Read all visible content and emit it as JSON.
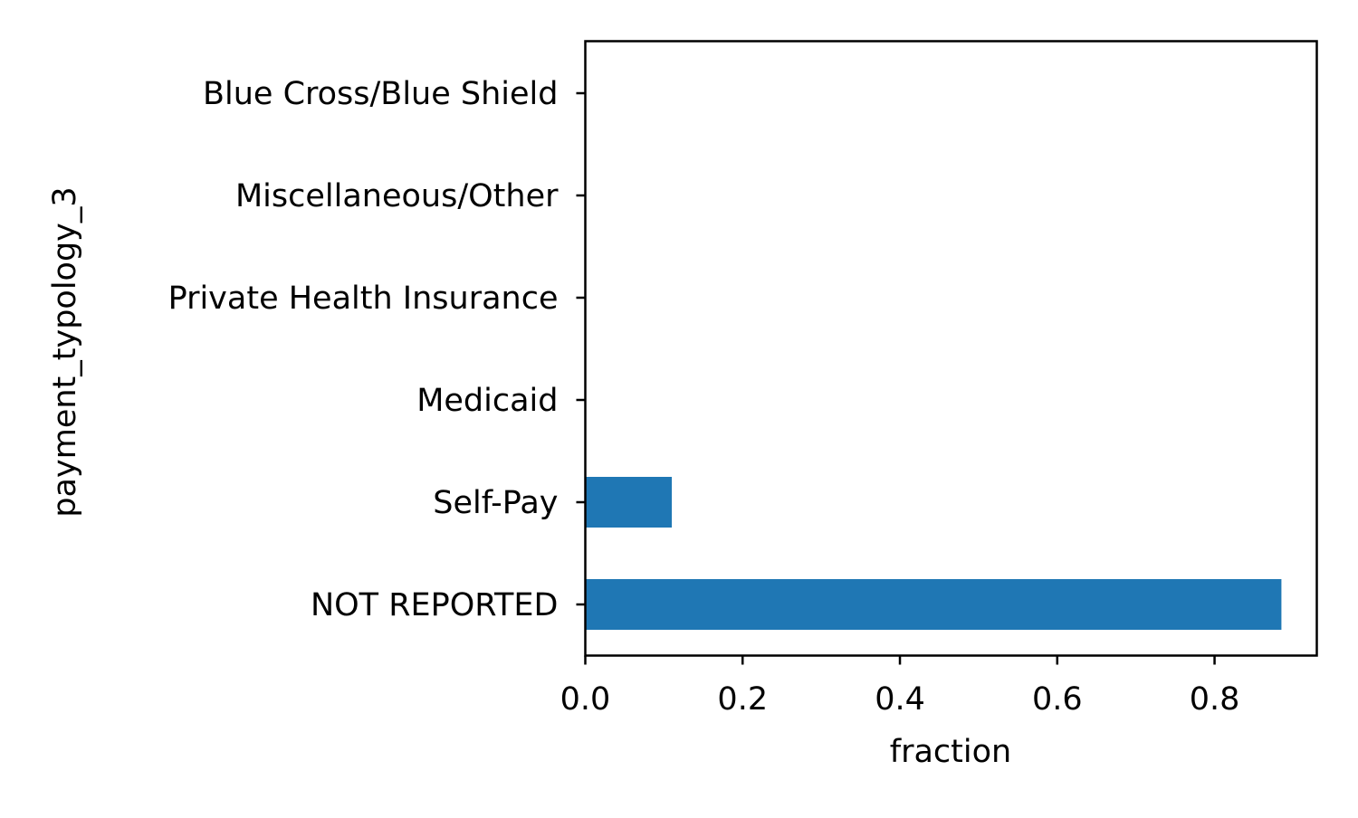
{
  "chart_data": {
    "type": "bar",
    "orientation": "horizontal",
    "categories": [
      "NOT REPORTED",
      "Self-Pay",
      "Medicaid",
      "Private Health Insurance",
      "Miscellaneous/Other",
      "Blue Cross/Blue Shield"
    ],
    "values": [
      0.885,
      0.11,
      0.0,
      0.0,
      0.0,
      0.0
    ],
    "xlabel": "fraction",
    "ylabel": "payment_typology_3",
    "xlim": [
      0,
      0.93
    ],
    "xticks": [
      0.0,
      0.2,
      0.4,
      0.6,
      0.8
    ],
    "xtick_labels": [
      "0.0",
      "0.2",
      "0.4",
      "0.6",
      "0.8"
    ],
    "grid": false,
    "bar_color": "#1f77b4"
  }
}
